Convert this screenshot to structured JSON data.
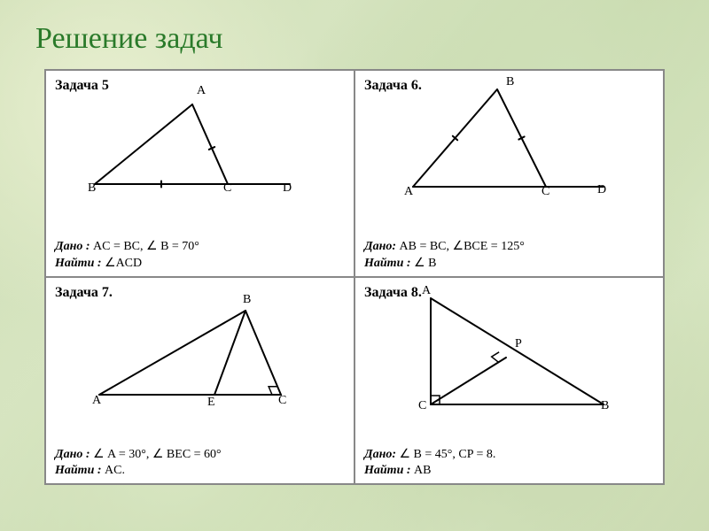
{
  "page": {
    "title": "Решение задач",
    "title_color": "#2a7a2a",
    "title_fontsize": 34,
    "background_colors": [
      "#cfdfb6",
      "#d6e4c0",
      "#c6d8ab",
      "#d9e7c4",
      "#cddcb3"
    ]
  },
  "grid": {
    "border_color": "#888888",
    "cell_bg": "#ffffff"
  },
  "style": {
    "stroke": "#000000",
    "stroke_width": 2,
    "tick_len": 7,
    "right_angle_size": 10
  },
  "problems": [
    {
      "id": "p5",
      "title": "Задача 5",
      "given_label": "Дано :",
      "given_text": " AC = BC, ∠ B = 70°",
      "find_label": "Найти :",
      "find_text": " ∠ACD",
      "figure": {
        "type": "triangle-ext",
        "points": {
          "A": [
            120,
            10
          ],
          "B": [
            10,
            100
          ],
          "C": [
            160,
            100
          ],
          "D": [
            230,
            100
          ]
        },
        "lines": [
          [
            "A",
            "B"
          ],
          [
            "A",
            "C"
          ],
          [
            "B",
            "D"
          ]
        ],
        "ticks": [
          {
            "on": [
              "A",
              "C"
            ],
            "t": 0.55
          },
          {
            "on": [
              "B",
              "C"
            ],
            "t": 0.5
          }
        ],
        "labels": {
          "A": [
            125,
            -2
          ],
          "B": [
            2,
            108
          ],
          "C": [
            155,
            108
          ],
          "D": [
            222,
            108
          ]
        }
      }
    },
    {
      "id": "p6",
      "title": "Задача 6.",
      "given_label": "Дано:",
      "given_text": " AB = BC, ∠BCE = 125°",
      "find_label": "Найти :",
      "find_text": " ∠ B",
      "figure": {
        "type": "triangle-ext",
        "points": {
          "B": [
            115,
            5
          ],
          "A": [
            20,
            115
          ],
          "C": [
            170,
            115
          ],
          "D": [
            235,
            115
          ]
        },
        "lines": [
          [
            "A",
            "B"
          ],
          [
            "B",
            "C"
          ],
          [
            "A",
            "D"
          ]
        ],
        "ticks": [
          {
            "on": [
              "A",
              "B"
            ],
            "t": 0.5
          },
          {
            "on": [
              "B",
              "C"
            ],
            "t": 0.5
          }
        ],
        "labels": {
          "B": [
            125,
            0
          ],
          "A": [
            10,
            124
          ],
          "C": [
            165,
            124
          ],
          "D": [
            228,
            122
          ]
        }
      }
    },
    {
      "id": "p7",
      "title": "Задача 7.",
      "given_label": "Дано :",
      "given_text": " ∠ A = 30°, ∠ BEC = 60°",
      "find_label": "Найти :",
      "find_text": " AC.",
      "figure": {
        "type": "triangle-alt",
        "points": {
          "A": [
            10,
            110
          ],
          "B": [
            175,
            15
          ],
          "C": [
            215,
            110
          ],
          "E": [
            140,
            110
          ]
        },
        "lines": [
          [
            "A",
            "B"
          ],
          [
            "B",
            "C"
          ],
          [
            "A",
            "C"
          ],
          [
            "E",
            "B"
          ]
        ],
        "right_angles": [
          {
            "at": "C",
            "along1": [
              "C",
              "B"
            ],
            "along2": [
              "C",
              "A"
            ]
          }
        ],
        "labels": {
          "A": [
            2,
            120
          ],
          "B": [
            172,
            6
          ],
          "C": [
            212,
            120
          ],
          "E": [
            132,
            122
          ]
        }
      }
    },
    {
      "id": "p8",
      "title": "Задача 8.",
      "given_label": "Дано:",
      "given_text": "  ∠ B = 45°, CP = 8.",
      "find_label": "Найти :",
      "find_text": " AB",
      "figure": {
        "type": "right-tri-alt",
        "points": {
          "A": [
            30,
            5
          ],
          "C": [
            30,
            125
          ],
          "B": [
            225,
            125
          ],
          "P": [
            115,
            72
          ]
        },
        "lines": [
          [
            "A",
            "C"
          ],
          [
            "C",
            "B"
          ],
          [
            "A",
            "B"
          ],
          [
            "C",
            "P"
          ]
        ],
        "right_angles": [
          {
            "at": "C",
            "along1": [
              "C",
              "A"
            ],
            "along2": [
              "C",
              "B"
            ]
          },
          {
            "at": "P",
            "along1": [
              "P",
              "C"
            ],
            "along2": [
              "P",
              "A"
            ]
          }
        ],
        "labels": {
          "A": [
            20,
            0
          ],
          "C": [
            16,
            130
          ],
          "B": [
            222,
            130
          ],
          "P": [
            125,
            60
          ]
        }
      }
    }
  ]
}
